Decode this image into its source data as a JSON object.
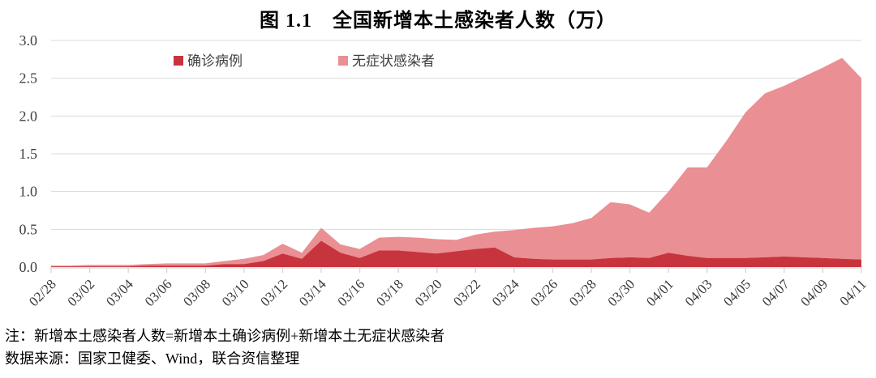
{
  "figure": {
    "title": "图 1.1　全国新增本土感染者人数（万）",
    "note": "注：新增本土感染者人数=新增本土确诊病例+新增本土无症状感染者",
    "source": "数据来源：国家卫健委、Wind，联合资信整理"
  },
  "chart_data": {
    "type": "area",
    "stacked": true,
    "title": "图 1.1　全国新增本土感染者人数（万）",
    "ylabel": "",
    "xlabel": "",
    "ylim": [
      0,
      3.0
    ],
    "yticks": [
      "0.0",
      "0.5",
      "1.0",
      "1.5",
      "2.0",
      "2.5",
      "3.0"
    ],
    "grid": true,
    "legend_position": "top-inside",
    "x_tick_every": 2,
    "x_tick_labels": [
      "02/28",
      "03/02",
      "03/04",
      "03/06",
      "03/08",
      "03/10",
      "03/12",
      "03/14",
      "03/16",
      "03/18",
      "03/20",
      "03/22",
      "03/24",
      "03/26",
      "03/28",
      "03/30",
      "04/01",
      "04/03",
      "04/05",
      "04/07",
      "04/09",
      "04/11"
    ],
    "x_dates": [
      "02/28",
      "03/01",
      "03/02",
      "03/03",
      "03/04",
      "03/05",
      "03/06",
      "03/07",
      "03/08",
      "03/09",
      "03/10",
      "03/11",
      "03/12",
      "03/13",
      "03/14",
      "03/15",
      "03/16",
      "03/17",
      "03/18",
      "03/19",
      "03/20",
      "03/21",
      "03/22",
      "03/23",
      "03/24",
      "03/25",
      "03/26",
      "03/27",
      "03/28",
      "03/29",
      "03/30",
      "03/31",
      "04/01",
      "04/02",
      "04/03",
      "04/04",
      "04/05",
      "04/06",
      "04/07",
      "04/08",
      "04/09",
      "04/10",
      "04/11"
    ],
    "series": [
      {
        "name": "确诊病例",
        "color": "#C8343E",
        "values": [
          0.01,
          0.01,
          0.01,
          0.01,
          0.01,
          0.02,
          0.02,
          0.02,
          0.02,
          0.04,
          0.04,
          0.08,
          0.18,
          0.11,
          0.35,
          0.19,
          0.12,
          0.22,
          0.22,
          0.2,
          0.18,
          0.21,
          0.24,
          0.26,
          0.13,
          0.11,
          0.1,
          0.1,
          0.1,
          0.12,
          0.13,
          0.12,
          0.19,
          0.15,
          0.12,
          0.12,
          0.12,
          0.13,
          0.14,
          0.13,
          0.12,
          0.11,
          0.1
        ]
      },
      {
        "name": "无症状感染者",
        "color": "#EA8F93",
        "values": [
          0.01,
          0.01,
          0.02,
          0.02,
          0.02,
          0.02,
          0.03,
          0.03,
          0.03,
          0.04,
          0.07,
          0.08,
          0.13,
          0.08,
          0.17,
          0.11,
          0.12,
          0.17,
          0.18,
          0.19,
          0.19,
          0.15,
          0.19,
          0.21,
          0.36,
          0.41,
          0.44,
          0.48,
          0.55,
          0.74,
          0.7,
          0.6,
          0.81,
          1.17,
          1.2,
          1.55,
          1.93,
          2.17,
          2.26,
          2.39,
          2.52,
          2.66,
          2.4
        ]
      }
    ],
    "colors": {
      "grid": "#D9D9D9",
      "axis": "#D6D6D6",
      "axis_text": "#404040",
      "tick_label": "#3A3A3A",
      "legend_text": "#404040"
    }
  }
}
